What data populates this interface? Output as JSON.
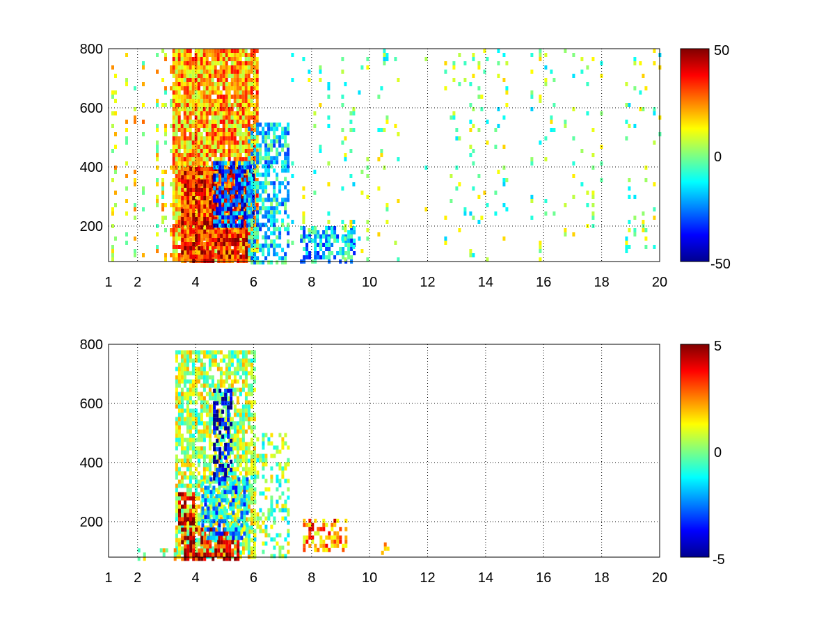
{
  "figure": {
    "colormap": "jet",
    "colormap_stops": [
      "#00008f",
      "#0000ff",
      "#0080ff",
      "#00ffff",
      "#80ff80",
      "#ffff00",
      "#ff8000",
      "#ff0000",
      "#800000"
    ],
    "grid": true,
    "grid_style": "dotted"
  },
  "chart_data": [
    {
      "type": "heatmap",
      "title": "",
      "xlabel": "",
      "ylabel": "",
      "xlim": [
        1,
        20
      ],
      "ylim": [
        80,
        800
      ],
      "xticks": [
        1,
        2,
        4,
        6,
        8,
        10,
        12,
        14,
        16,
        18,
        20
      ],
      "xtick_labels": [
        "1",
        "2",
        "4",
        "6",
        "8",
        "10",
        "12",
        "14",
        "16",
        "18",
        "20"
      ],
      "yticks": [
        200,
        400,
        600,
        800
      ],
      "ytick_labels": [
        "200",
        "400",
        "600",
        "800"
      ],
      "clim": [
        -50,
        50
      ],
      "colorbar_ticks": [
        -50,
        0,
        50
      ],
      "colorbar_labels": [
        "-50",
        "0",
        "50"
      ],
      "features": [
        {
          "x": [
            1.0,
            3.2
          ],
          "y": [
            80,
            800
          ],
          "value": 10,
          "density": 0.3,
          "pattern": "vertical streaks"
        },
        {
          "x": [
            3.2,
            6.1
          ],
          "y": [
            80,
            800
          ],
          "value": 20,
          "density": 0.95,
          "pattern": "dense band"
        },
        {
          "x": [
            3.5,
            5.8
          ],
          "y": [
            80,
            400
          ],
          "value": 35,
          "density": 0.9,
          "pattern": "red core"
        },
        {
          "x": [
            4.6,
            6.0
          ],
          "y": [
            200,
            420
          ],
          "value": -30,
          "density": 0.7,
          "pattern": "blue patch"
        },
        {
          "x": [
            5.8,
            7.2
          ],
          "y": [
            80,
            550
          ],
          "value": -15,
          "density": 0.6,
          "pattern": "cyan patch"
        },
        {
          "x": [
            7.6,
            9.5
          ],
          "y": [
            80,
            200
          ],
          "value": -18,
          "density": 0.6,
          "pattern": "cyan patch"
        },
        {
          "x": [
            7.2,
            20.0
          ],
          "y": [
            80,
            800
          ],
          "value": 0,
          "density": 0.12,
          "pattern": "sparse streaks"
        }
      ]
    },
    {
      "type": "heatmap",
      "title": "",
      "xlabel": "",
      "ylabel": "",
      "xlim": [
        1,
        20
      ],
      "ylim": [
        80,
        800
      ],
      "xticks": [
        1,
        2,
        4,
        6,
        8,
        10,
        12,
        14,
        16,
        18,
        20
      ],
      "xtick_labels": [
        "1",
        "2",
        "4",
        "6",
        "8",
        "10",
        "12",
        "14",
        "16",
        "18",
        "20"
      ],
      "yticks": [
        200,
        400,
        600,
        800
      ],
      "ytick_labels": [
        "200",
        "400",
        "600",
        "800"
      ],
      "clim": [
        -5,
        5
      ],
      "colorbar_ticks": [
        -5,
        0,
        5
      ],
      "colorbar_labels": [
        "-5",
        "0",
        "5"
      ],
      "features": [
        {
          "x": [
            3.3,
            6.0
          ],
          "y": [
            80,
            780
          ],
          "value": 0.5,
          "density": 0.75,
          "pattern": "plume"
        },
        {
          "x": [
            3.4,
            3.9
          ],
          "y": [
            200,
            300
          ],
          "value": 4.5,
          "density": 0.6,
          "pattern": "red cluster"
        },
        {
          "x": [
            3.5,
            5.5
          ],
          "y": [
            80,
            180
          ],
          "value": 4,
          "density": 0.7,
          "pattern": "red band"
        },
        {
          "x": [
            4.6,
            5.2
          ],
          "y": [
            350,
            650
          ],
          "value": -4.5,
          "density": 0.55,
          "pattern": "blue filament"
        },
        {
          "x": [
            4.2,
            5.8
          ],
          "y": [
            150,
            350
          ],
          "value": -2,
          "density": 0.6,
          "pattern": "cyan band"
        },
        {
          "x": [
            2.0,
            3.5
          ],
          "y": [
            80,
            110
          ],
          "value": 1,
          "density": 0.6,
          "pattern": "low streak"
        },
        {
          "x": [
            6.0,
            7.2
          ],
          "y": [
            80,
            500
          ],
          "value": 0,
          "density": 0.35,
          "pattern": "sparse patch"
        },
        {
          "x": [
            7.7,
            9.2
          ],
          "y": [
            100,
            210
          ],
          "value": 2.5,
          "density": 0.5,
          "pattern": "orange patch"
        },
        {
          "x": [
            10.3,
            10.6
          ],
          "y": [
            100,
            130
          ],
          "value": 2.5,
          "density": 0.5,
          "pattern": "small patch"
        }
      ]
    }
  ]
}
